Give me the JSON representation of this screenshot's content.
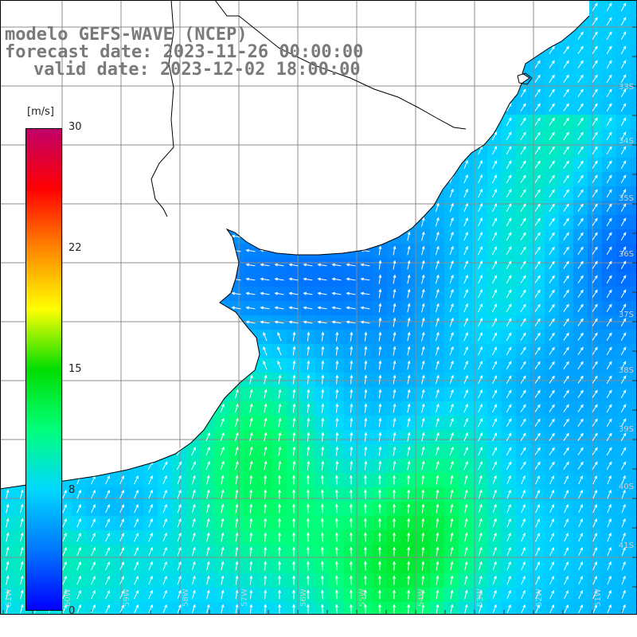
{
  "title": {
    "model": "modelo GEFS-WAVE (NCEP)",
    "forecast": "forecast date: 2023-11-26 00:00:00",
    "valid": "valid date: 2023-12-02 18:00:00"
  },
  "colorbar": {
    "unit": "[m/s]",
    "ticks": [
      {
        "label": "30",
        "value": 30
      },
      {
        "label": "22",
        "value": 22
      },
      {
        "label": "15",
        "value": 15
      },
      {
        "label": "8",
        "value": 8
      },
      {
        "label": "0",
        "value": 0
      }
    ],
    "stops": [
      "#0000ff",
      "#0077ff",
      "#00d8ff",
      "#00ff7a",
      "#00dd00",
      "#ffff00",
      "#ff8800",
      "#ff0000",
      "#c0006a"
    ]
  },
  "latitude_labels": [
    "33S",
    "34S",
    "35S",
    "36S",
    "37S",
    "38S",
    "39S",
    "40S",
    "41S"
  ],
  "longitude_labels": [
    "61W",
    "60W",
    "59W",
    "58W",
    "57W",
    "56W",
    "55W",
    "54W",
    "53W",
    "52W",
    "51W"
  ],
  "colors": {
    "land": "#ffffff",
    "coast": "#000000",
    "grid": "#8c8c8c",
    "arrow": "#ffffff",
    "title": "#7a7a7a"
  }
}
